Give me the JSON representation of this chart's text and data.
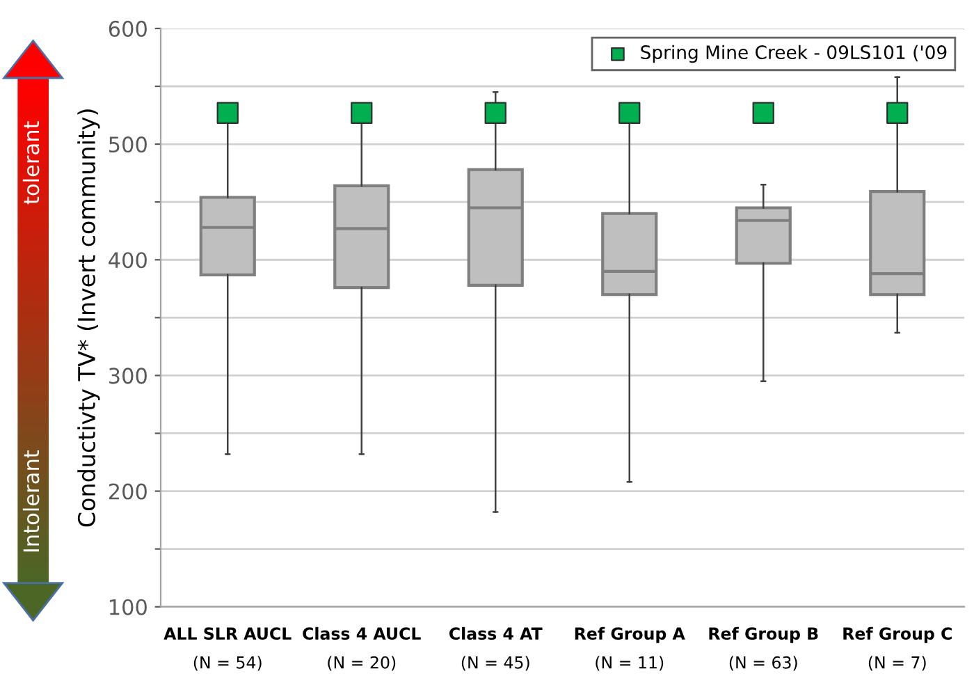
{
  "chart_data": {
    "type": "box",
    "ylabel": "Conductivty TV* (Invert community)",
    "categories": [
      "ALL SLR AUCL\n(N = 54)",
      "Class 4 AUCL\n(N = 20)",
      "Class 4 AT\n(N = 45)",
      "Ref Group A\n(N = 11)",
      "Ref Group B\n(N = 63)",
      "Ref Group C\n(N = 7)"
    ],
    "series": [
      {
        "color": "#bfbfbf",
        "boxes": [
          {
            "low": 232,
            "q1": 387,
            "median": 428,
            "q3": 454,
            "high": 533
          },
          {
            "low": 232,
            "q1": 376,
            "median": 427,
            "q3": 464,
            "high": 533
          },
          {
            "low": 182,
            "q1": 378,
            "median": 445,
            "q3": 478,
            "high": 545
          },
          {
            "low": 208,
            "q1": 370,
            "median": 390,
            "q3": 440,
            "high": 533
          },
          {
            "low": 295,
            "q1": 397,
            "median": 434,
            "q3": 445,
            "high": 465
          },
          {
            "low": 337,
            "q1": 370,
            "median": 388,
            "q3": 459,
            "high": 558
          }
        ]
      },
      {
        "type": "scatter",
        "name": "Spring Mine Creek - 09LS101 ('09",
        "color": "#00b050",
        "marker": "square",
        "x": [
          "ALL SLR AUCL\n(N = 54)",
          "Class 4 AUCL\n(N = 20)",
          "Class 4 AT\n(N = 45)",
          "Ref Group A\n(N = 11)",
          "Ref Group B\n(N = 63)",
          "Ref Group C\n(N = 7)"
        ],
        "values": [
          527,
          527,
          527,
          527,
          527,
          527
        ]
      }
    ],
    "ylim": [
      100,
      600
    ],
    "yticks": [
      100,
      {
        "value": 150,
        "label": null
      },
      200,
      {
        "value": 250,
        "label": null
      },
      300,
      {
        "value": 350,
        "label": null
      },
      400,
      {
        "value": 450,
        "label": null
      },
      500,
      {
        "value": 550,
        "label": null
      },
      600
    ],
    "grid": "y",
    "legend": "top right",
    "annotations": [
      "tolerant",
      "Intolerant"
    ]
  }
}
